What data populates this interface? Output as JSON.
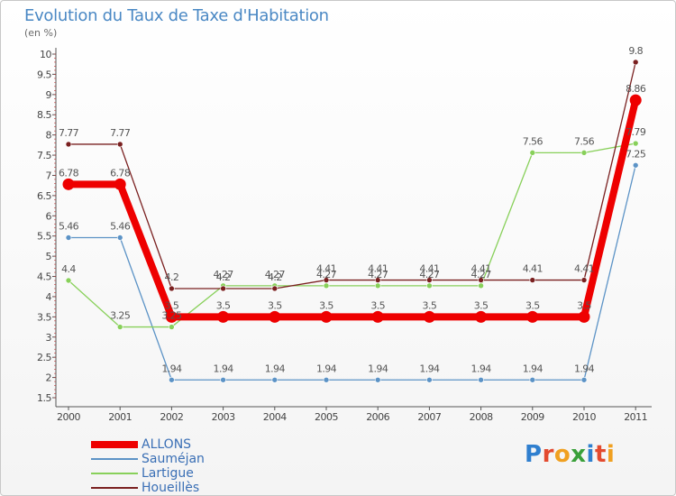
{
  "title": "Evolution du Taux de Taxe d'Habitation",
  "subtitle": "(en %)",
  "logo_text": "Proxiti",
  "colors": {
    "title": "#4a88c4",
    "axis": "#444444",
    "tick_minor": "#c03030",
    "label": "#555555"
  },
  "chart_data": {
    "type": "line",
    "title": "Evolution du Taux de Taxe d'Habitation",
    "ylabel": "(en %)",
    "xlabel": "",
    "x": [
      2000,
      2001,
      2002,
      2003,
      2004,
      2005,
      2006,
      2007,
      2008,
      2009,
      2010,
      2011
    ],
    "x_labels": [
      "2000",
      "2001",
      "2002",
      "2003",
      "2004",
      "2005",
      "2006",
      "2007",
      "2008",
      "2009",
      "2010",
      "2011"
    ],
    "ylim": [
      1.5,
      10
    ],
    "yticks": [
      1.5,
      2,
      2.5,
      3,
      3.5,
      4,
      4.5,
      5,
      5.5,
      6,
      6.5,
      7,
      7.5,
      8,
      8.5,
      9,
      9.5,
      10
    ],
    "ytick_labels": [
      "1.5",
      "2",
      "2.5",
      "3",
      "3.5",
      "4",
      "4.5",
      "5",
      "5.5",
      "6",
      "6.5",
      "7",
      "7.5",
      "8",
      "8.5",
      "9",
      "9.5",
      "10"
    ],
    "grid": false,
    "legend_position": "bottom-left",
    "series": [
      {
        "name": "ALLONS",
        "color": "#ee0000",
        "values": [
          6.78,
          6.78,
          3.5,
          3.5,
          3.5,
          3.5,
          3.5,
          3.5,
          3.5,
          3.5,
          3.5,
          8.86
        ],
        "labels": [
          "6.78",
          "6.78",
          "3.5",
          "3.5",
          "3.5",
          "3.5",
          "3.5",
          "3.5",
          "3.5",
          "3.5",
          "3.5",
          "8.86"
        ],
        "thick": true
      },
      {
        "name": "Sauméjan",
        "color": "#5c93c6",
        "values": [
          5.46,
          5.46,
          1.94,
          1.94,
          1.94,
          1.94,
          1.94,
          1.94,
          1.94,
          1.94,
          1.94,
          7.25
        ],
        "labels": [
          "5.46",
          "5.46",
          "1.94",
          "1.94",
          "1.94",
          "1.94",
          "1.94",
          "1.94",
          "1.94",
          "1.94",
          "1.94",
          "7.25"
        ],
        "thick": false
      },
      {
        "name": "Lartigue",
        "color": "#88d05a",
        "values": [
          4.4,
          3.25,
          3.25,
          4.27,
          4.27,
          4.27,
          4.27,
          4.27,
          4.27,
          7.56,
          7.56,
          7.79
        ],
        "labels": [
          "4.4",
          "3.25",
          "3.25",
          "4.27",
          "4.27",
          "4.27",
          "4.27",
          "4.27",
          "4.27",
          "7.56",
          "7.56",
          "7.79"
        ],
        "thick": false
      },
      {
        "name": "Houeillès",
        "color": "#7a2020",
        "values": [
          7.77,
          7.77,
          4.2,
          4.2,
          4.2,
          4.41,
          4.41,
          4.41,
          4.41,
          4.41,
          4.41,
          9.8
        ],
        "labels": [
          "7.77",
          "7.77",
          "4.2",
          "4.2",
          "4.2",
          "4.41",
          "4.41",
          "4.41",
          "4.41",
          "4.41",
          "4.41",
          "9.8"
        ],
        "thick": false
      }
    ]
  }
}
